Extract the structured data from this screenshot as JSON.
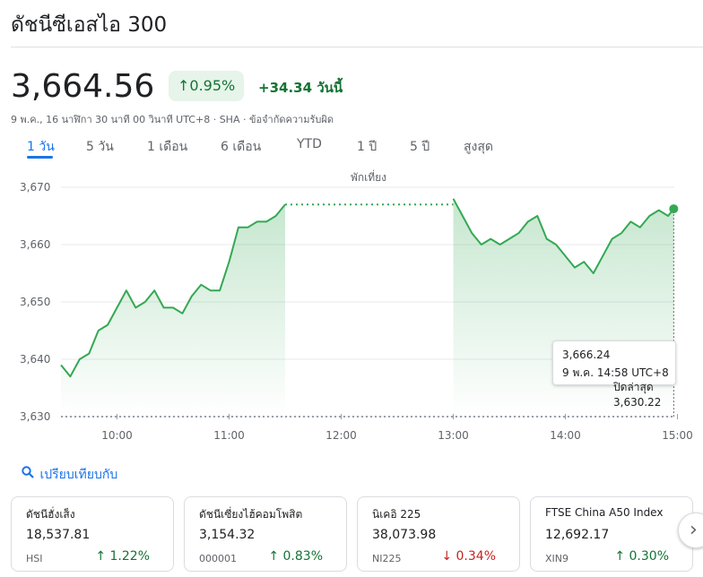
{
  "header": {
    "title": "ดัชนีซีเอสไอ 300"
  },
  "quote": {
    "price": "3,664.56",
    "change_pct": "0.95%",
    "change_abs": "+34.34 วันนี้",
    "meta": "9 พ.ค., 16 นาฬิกา 30 นาที 00 วินาที UTC+8 · SHA · ข้อจำกัดความรับผิด",
    "up_color": "#137333"
  },
  "tabs": [
    "1 วัน",
    "5 วัน",
    "1 เดือน",
    "6 เดือน",
    "YTD",
    "1 ปี",
    "5 ปี",
    "สูงสุด"
  ],
  "chart_data": {
    "type": "line",
    "annotation": "พักเที่ยง",
    "y_ticks": [
      "3,670",
      "3,660",
      "3,650",
      "3,640",
      "3,630"
    ],
    "ylim": [
      3630,
      3670
    ],
    "x_ticks": [
      "10:00",
      "11:00",
      "12:00",
      "13:00",
      "14:00",
      "15:00"
    ],
    "series": [
      {
        "x": [
          "09:30",
          "09:35",
          "09:40",
          "09:45",
          "09:50",
          "09:55",
          "10:00",
          "10:05",
          "10:10",
          "10:15",
          "10:20",
          "10:25",
          "10:30",
          "10:35",
          "10:40",
          "10:45",
          "10:50",
          "10:55",
          "11:00",
          "11:05",
          "11:10",
          "11:15",
          "11:20",
          "11:25",
          "11:30",
          "13:00",
          "13:05",
          "13:10",
          "13:15",
          "13:20",
          "13:25",
          "13:30",
          "13:35",
          "13:40",
          "13:45",
          "13:50",
          "13:55",
          "14:00",
          "14:05",
          "14:10",
          "14:15",
          "14:20",
          "14:25",
          "14:30",
          "14:35",
          "14:40",
          "14:45",
          "14:50",
          "14:55",
          "14:58"
        ],
        "values": [
          3639,
          3637,
          3640,
          3641,
          3645,
          3646,
          3649,
          3652,
          3649,
          3650,
          3652,
          3649,
          3649,
          3648,
          3651,
          3653,
          3652,
          3652,
          3657,
          3663,
          3663,
          3664,
          3664,
          3665,
          3667,
          3668,
          3665,
          3662,
          3660,
          3661,
          3660,
          3661,
          3662,
          3664,
          3665,
          3661,
          3660,
          3658,
          3656,
          3657,
          3655,
          3658,
          3661,
          3662,
          3664,
          3663,
          3665,
          3666,
          3665,
          3666.24
        ]
      }
    ],
    "line_color": "#34a853",
    "previous_close": 3630.22,
    "previous_close_label": "ปิดล่าสุด",
    "previous_close_text": "3,630.22",
    "tooltip_value": "3,666.24",
    "tooltip_time": "9 พ.ค. 14:58 UTC+8"
  },
  "compare": {
    "label": "เปรียบเทียบกับ"
  },
  "cards": [
    {
      "name": "ดัชนีฮั่งเส็ง",
      "price": "18,537.81",
      "ticker": "HSI",
      "change": "1.22%",
      "direction": "up"
    },
    {
      "name": "ดัชนีเซี่ยงไฮ้คอมโพสิต",
      "price": "3,154.32",
      "ticker": "000001",
      "change": "0.83%",
      "direction": "up"
    },
    {
      "name": "นิเคอิ 225",
      "price": "38,073.98",
      "ticker": "NI225",
      "change": "0.34%",
      "direction": "down"
    },
    {
      "name": "FTSE China A50 Index",
      "price": "12,692.17",
      "ticker": "XIN9",
      "change": "0.30%",
      "direction": "up"
    }
  ],
  "icons": {
    "search": "search-icon",
    "next": "chevron-right-icon",
    "arrow_up": "arrow-up-icon",
    "arrow_down": "arrow-down-icon"
  }
}
